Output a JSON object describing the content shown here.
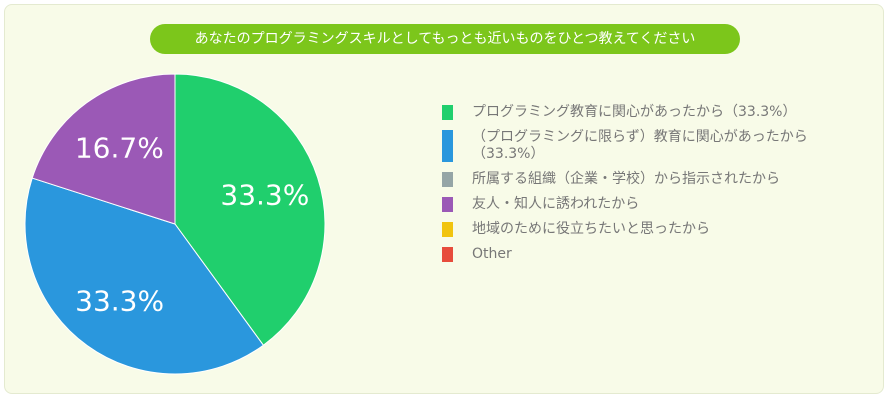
{
  "chart_data": {
    "type": "pie",
    "title": "あなたのプログラミングスキルとしてもっとも近いものをひとつ教えてください",
    "slices": [
      {
        "label": "プログラミング教育に関心があったから（33.3%）",
        "value": 33.3,
        "color": "#20cf6d",
        "data_label": "33.3%"
      },
      {
        "label": "（プログラミングに限らず）教育に関心があったから（33.3%）",
        "value": 33.3,
        "color": "#2a97dd",
        "data_label": "33.3%"
      },
      {
        "label": "所属する組織（企業・学校）から指示されたから",
        "value": 0,
        "color": "#95a5a6",
        "data_label": ""
      },
      {
        "label": "友人・知人に誘われたから",
        "value": 16.7,
        "color": "#9b59b6",
        "data_label": "16.7%"
      },
      {
        "label": "地域のために役立ちたいと思ったから",
        "value": 0,
        "color": "#f1c40f",
        "data_label": ""
      },
      {
        "label": "Other",
        "value": 0,
        "color": "#e74c3c",
        "data_label": ""
      }
    ],
    "legend_position": "right"
  }
}
